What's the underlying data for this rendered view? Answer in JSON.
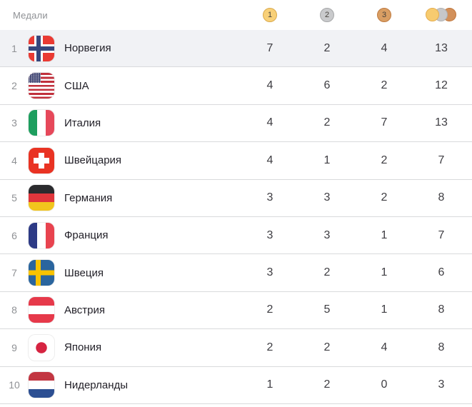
{
  "header": {
    "title": "Медали",
    "columns": [
      {
        "id": "gold",
        "label": "1",
        "icon": "gold-medal-icon",
        "color": "#f8d078"
      },
      {
        "id": "silver",
        "label": "2",
        "icon": "silver-medal-icon",
        "color": "#c9cacc"
      },
      {
        "id": "bronze",
        "label": "3",
        "icon": "bronze-medal-icon",
        "color": "#d99e63"
      },
      {
        "id": "total",
        "label": "",
        "icon": "total-medals-icon",
        "color": "#f7cb6f"
      }
    ]
  },
  "colors": {
    "gold": "#f8d078",
    "silver": "#c9cacc",
    "bronze": "#d99e63",
    "row_highlight": "#f1f2f5",
    "separator": "#d9dadc",
    "muted_text": "#8f9195",
    "country_text": "#211f27",
    "count_text": "#3e3d42"
  },
  "table": {
    "rows": [
      {
        "rank": "1",
        "country": "Норвегия",
        "flag": "no",
        "gold": "7",
        "silver": "2",
        "bronze": "4",
        "total": "13",
        "highlight": true
      },
      {
        "rank": "2",
        "country": "США",
        "flag": "us",
        "gold": "4",
        "silver": "6",
        "bronze": "2",
        "total": "12",
        "highlight": false
      },
      {
        "rank": "3",
        "country": "Италия",
        "flag": "it",
        "gold": "4",
        "silver": "2",
        "bronze": "7",
        "total": "13",
        "highlight": false
      },
      {
        "rank": "4",
        "country": "Швейцария",
        "flag": "ch",
        "gold": "4",
        "silver": "1",
        "bronze": "2",
        "total": "7",
        "highlight": false
      },
      {
        "rank": "5",
        "country": "Германия",
        "flag": "de",
        "gold": "3",
        "silver": "3",
        "bronze": "2",
        "total": "8",
        "highlight": false
      },
      {
        "rank": "6",
        "country": "Франция",
        "flag": "fr",
        "gold": "3",
        "silver": "3",
        "bronze": "1",
        "total": "7",
        "highlight": false
      },
      {
        "rank": "7",
        "country": "Швеция",
        "flag": "se",
        "gold": "3",
        "silver": "2",
        "bronze": "1",
        "total": "6",
        "highlight": false
      },
      {
        "rank": "8",
        "country": "Австрия",
        "flag": "at",
        "gold": "2",
        "silver": "5",
        "bronze": "1",
        "total": "8",
        "highlight": false
      },
      {
        "rank": "9",
        "country": "Япония",
        "flag": "jp",
        "gold": "2",
        "silver": "2",
        "bronze": "4",
        "total": "8",
        "highlight": false
      },
      {
        "rank": "10",
        "country": "Нидерланды",
        "flag": "nl",
        "gold": "1",
        "silver": "2",
        "bronze": "0",
        "total": "3",
        "highlight": false
      }
    ]
  }
}
